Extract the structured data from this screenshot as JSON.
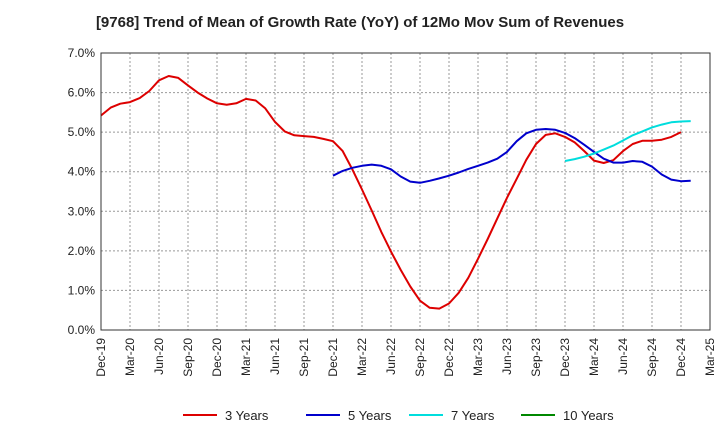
{
  "chart_data": {
    "type": "line",
    "title": "[9768]  Trend of Mean of Growth Rate (YoY) of 12Mo Mov Sum of Revenues",
    "xlabel": "",
    "ylabel": "",
    "ylim": [
      0,
      7
    ],
    "grid": true,
    "legend_position": "bottom",
    "y_ticks": [
      "0.0%",
      "1.0%",
      "2.0%",
      "3.0%",
      "4.0%",
      "5.0%",
      "6.0%",
      "7.0%"
    ],
    "x_tick_labels": [
      "Dec-19",
      "Mar-20",
      "Jun-20",
      "Sep-20",
      "Dec-20",
      "Mar-21",
      "Jun-21",
      "Sep-21",
      "Dec-21",
      "Mar-22",
      "Jun-22",
      "Sep-22",
      "Dec-22",
      "Mar-23",
      "Jun-23",
      "Sep-23",
      "Dec-23",
      "Mar-24",
      "Jun-24",
      "Sep-24",
      "Dec-24",
      "Mar-25"
    ],
    "x_start": "Dec-19",
    "series": [
      {
        "name": "3 Years",
        "color": "#dd0000",
        "start_month_index": 0,
        "values": [
          5.42,
          5.62,
          5.72,
          5.76,
          5.86,
          6.04,
          6.31,
          6.42,
          6.37,
          6.18,
          6.0,
          5.85,
          5.73,
          5.69,
          5.73,
          5.84,
          5.8,
          5.6,
          5.26,
          5.02,
          4.92,
          4.9,
          4.88,
          4.83,
          4.77,
          4.52,
          4.06,
          3.55,
          3.02,
          2.48,
          1.98,
          1.52,
          1.1,
          0.74,
          0.56,
          0.54,
          0.67,
          0.94,
          1.32,
          1.8,
          2.3,
          2.82,
          3.34,
          3.82,
          4.3,
          4.7,
          4.93,
          4.97,
          4.88,
          4.74,
          4.52,
          4.28,
          4.22,
          4.29,
          4.52,
          4.7,
          4.78,
          4.78,
          4.81,
          4.88,
          5.0
        ]
      },
      {
        "name": "5 Years",
        "color": "#0000cc",
        "start_month_index": 24,
        "values": [
          3.9,
          4.02,
          4.1,
          4.15,
          4.18,
          4.15,
          4.06,
          3.88,
          3.75,
          3.72,
          3.77,
          3.83,
          3.9,
          3.98,
          4.07,
          4.15,
          4.23,
          4.33,
          4.5,
          4.77,
          4.97,
          5.06,
          5.08,
          5.06,
          4.98,
          4.85,
          4.68,
          4.5,
          4.33,
          4.23,
          4.23,
          4.27,
          4.25,
          4.13,
          3.93,
          3.8,
          3.76,
          3.77
        ]
      },
      {
        "name": "7 Years",
        "color": "#00dddd",
        "start_month_index": 48,
        "values": [
          4.27,
          4.32,
          4.38,
          4.46,
          4.56,
          4.66,
          4.79,
          4.92,
          5.02,
          5.12,
          5.19,
          5.25,
          5.27,
          5.28
        ]
      },
      {
        "name": "10 Years",
        "color": "#008800",
        "start_month_index": 0,
        "values": []
      }
    ]
  }
}
